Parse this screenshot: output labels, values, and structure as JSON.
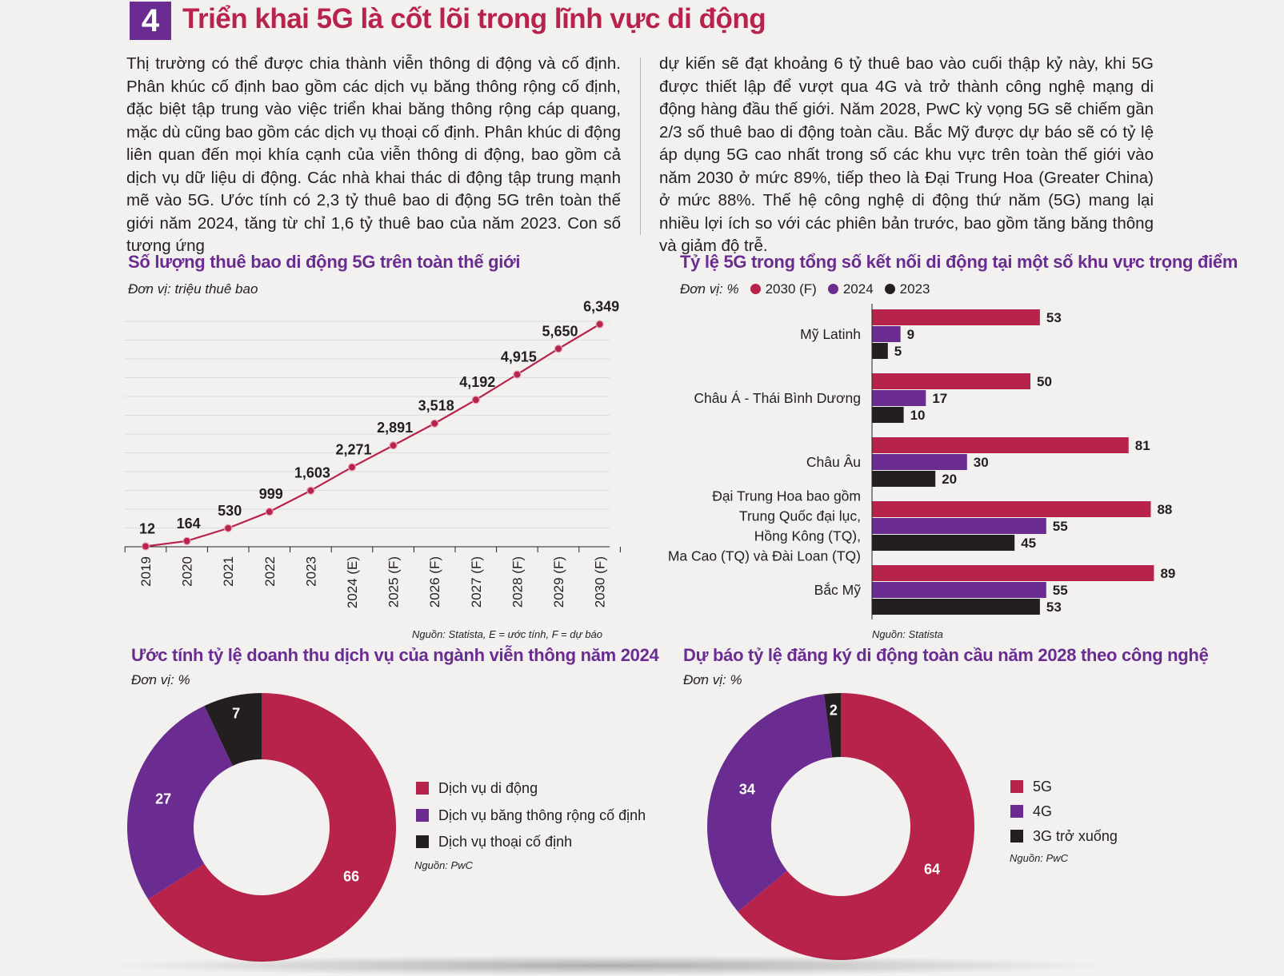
{
  "header": {
    "number": "4",
    "title": "Triển khai 5G là cốt lõi trong lĩnh vực di động"
  },
  "article": {
    "left": "Thị trường có thể được chia thành viễn thông di động và cố định. Phân khúc cố định bao gồm các dịch vụ băng thông rộng cố định, đặc biệt tập trung vào việc triển khai băng thông rộng cáp quang, mặc dù cũng bao gồm các dịch vụ thoại cố định. Phân khúc di động liên quan đến mọi khía cạnh của viễn thông di động, bao gồm cả dịch vụ dữ liệu di động. Các nhà khai thác di động tập trung mạnh mẽ vào 5G. Ước tính có 2,3 tỷ thuê bao di động 5G trên toàn thế giới năm 2024, tăng từ chỉ 1,6 tỷ thuê bao của năm 2023. Con số tương ứng",
    "right": "dự kiến sẽ đạt khoảng 6 tỷ thuê bao vào cuối thập kỷ này, khi 5G được thiết lập để vượt qua 4G và trở thành công nghệ mạng di động hàng đầu thế giới. Năm 2028, PwC kỳ vọng 5G sẽ chiếm gần 2/3 số thuê bao di động toàn cầu. Bắc Mỹ được dự báo sẽ có tỷ lệ áp dụng 5G cao nhất trong số các khu vực trên toàn thế giới vào năm 2030 ở mức 89%, tiếp theo là Đại Trung Hoa (Greater China) ở mức 88%. Thế hệ công nghệ di động thứ năm (5G) mang lại nhiều lợi ích so với các phiên bản trước, bao gồm tăng băng thông và giảm độ trễ."
  },
  "colors": {
    "crimson": "#b8234b",
    "purple": "#6a2c91",
    "black": "#231f20"
  },
  "chart_data": [
    {
      "type": "line",
      "title": "Số lượng thuê bao di động 5G trên toàn thế giới",
      "unit": "Đơn vị: triệu thuê bao",
      "source": "Nguồn: Statista, E = ước tính, F = dự báo",
      "categories": [
        "2019",
        "2020",
        "2021",
        "2022",
        "2023",
        "2024 (E)",
        "2025 (F)",
        "2026 (F)",
        "2027 (F)",
        "2028 (F)",
        "2029 (F)",
        "2030 (F)"
      ],
      "values": [
        12,
        164,
        530,
        999,
        1603,
        2271,
        2891,
        3518,
        4192,
        4915,
        5650,
        6349
      ],
      "labels": [
        "12",
        "164",
        "530",
        "999",
        "1,603",
        "2,271",
        "2,891",
        "3,518",
        "4,192",
        "4,915",
        "5,650",
        "6,349"
      ],
      "ylim": [
        0,
        6500
      ],
      "color": "#b8234b",
      "grid": true
    },
    {
      "type": "bar",
      "orientation": "horizontal",
      "title": "Tỷ lệ 5G trong tổng số kết nối di động tại một số khu vực trọng điểm",
      "unit": "Đơn vị: %",
      "source": "Nguồn: Statista",
      "categories": [
        "Mỹ Latinh",
        "Châu Á - Thái Bình Dương",
        "Châu Âu",
        "Đại Trung Hoa bao gồm Trung Quốc đại lục, Hồng Kông (TQ), Ma Cao (TQ) và Đài Loan (TQ)",
        "Bắc Mỹ"
      ],
      "category_lines": [
        [
          "Mỹ Latinh"
        ],
        [
          "Châu Á - Thái Bình Dương"
        ],
        [
          "Châu Âu"
        ],
        [
          "Đại Trung Hoa bao gồm",
          "Trung Quốc đại lục,",
          "Hồng Kông (TQ),",
          "Ma Cao (TQ) và Đài Loan (TQ)"
        ],
        [
          "Bắc Mỹ"
        ]
      ],
      "series": [
        {
          "name": "2030 (F)",
          "color": "#b8234b",
          "values": [
            53,
            50,
            81,
            88,
            89
          ]
        },
        {
          "name": "2024",
          "color": "#6a2c91",
          "values": [
            9,
            17,
            30,
            55,
            55
          ]
        },
        {
          "name": "2023",
          "color": "#231f20",
          "values": [
            5,
            10,
            20,
            45,
            53
          ]
        }
      ],
      "xlim": [
        0,
        90
      ]
    },
    {
      "type": "pie",
      "donut": true,
      "title": "Ước tính tỷ lệ doanh thu dịch vụ của ngành viễn thông năm 2024",
      "unit": "Đơn vị: %",
      "source": "Nguồn: PwC",
      "legend_position": "right",
      "slices": [
        {
          "label": "Dịch vụ di động",
          "value": 66,
          "color": "#b8234b"
        },
        {
          "label": "Dịch vụ băng thông rộng cố định",
          "value": 27,
          "color": "#6a2c91"
        },
        {
          "label": "Dịch vụ thoại cố định",
          "value": 7,
          "color": "#231f20"
        }
      ]
    },
    {
      "type": "pie",
      "donut": true,
      "title": "Dự báo tỷ lệ đăng ký di động toàn cầu năm 2028 theo công nghệ",
      "unit": "Đơn vị: %",
      "source": "Nguồn: PwC",
      "legend_position": "right",
      "slices": [
        {
          "label": "5G",
          "value": 64,
          "color": "#b8234b"
        },
        {
          "label": "4G",
          "value": 34,
          "color": "#6a2c91"
        },
        {
          "label": "3G trở xuống",
          "value": 2,
          "color": "#231f20"
        }
      ]
    }
  ]
}
